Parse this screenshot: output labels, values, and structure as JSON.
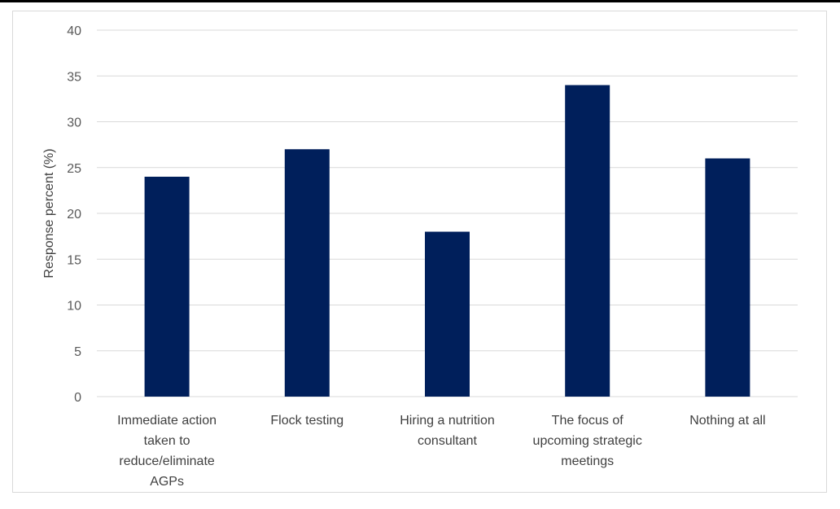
{
  "chart_data": {
    "type": "bar",
    "categories": [
      [
        "Immediate action",
        "taken to",
        "reduce/eliminate",
        "AGPs"
      ],
      [
        "Flock testing"
      ],
      [
        "Hiring a nutrition",
        "consultant"
      ],
      [
        "The focus of",
        "upcoming strategic",
        "meetings"
      ],
      [
        "Nothing at all"
      ]
    ],
    "values": [
      24,
      27,
      18,
      34,
      26
    ],
    "title": "",
    "xlabel": "",
    "ylabel": "Response percent (%)",
    "ylim": [
      0,
      40
    ],
    "yticks": [
      0,
      5,
      10,
      15,
      20,
      25,
      30,
      35,
      40
    ],
    "grid": true,
    "legend": "none",
    "bar_color": "#001f5b",
    "grid_color": "#d9d9d9"
  }
}
